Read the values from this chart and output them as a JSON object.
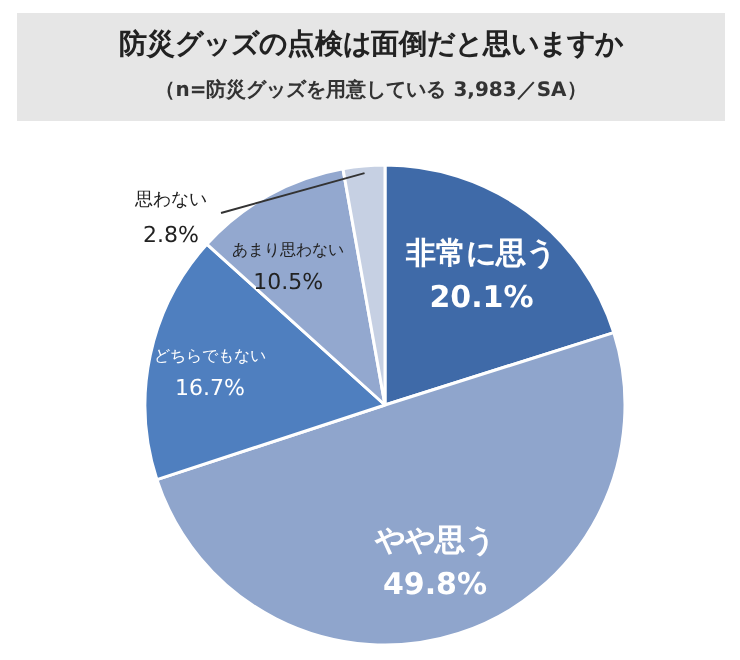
{
  "chart_data": {
    "type": "pie",
    "title": "防災グッズの点検は面倒だと思いますか",
    "subtitle": "（n=防災グッズを用意している 3,983／SA）",
    "categories": [
      "非常に思う",
      "やや思う",
      "どちらでもない",
      "あまり思わない",
      "思わない"
    ],
    "values": [
      20.1,
      49.8,
      16.7,
      10.5,
      2.8
    ],
    "colors": [
      "#3f6aa8",
      "#8fa5cc",
      "#4f7fbf",
      "#93a8cf",
      "#c6d0e3"
    ],
    "value_labels": [
      "20.1%",
      "49.8%",
      "16.7%",
      "10.5%",
      "2.8%"
    ]
  }
}
